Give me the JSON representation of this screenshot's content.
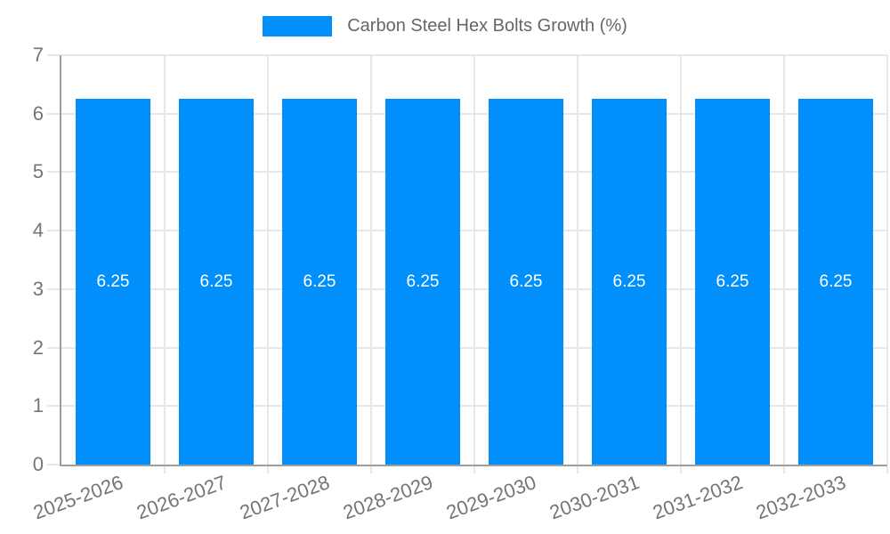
{
  "chart_data": {
    "type": "bar",
    "title": "Carbon Steel Hex Bolts Growth (%)",
    "categories": [
      "2025-2026",
      "2026-2027",
      "2027-2028",
      "2028-2029",
      "2029-2030",
      "2030-2031",
      "2031-2032",
      "2032-2033"
    ],
    "values": [
      6.25,
      6.25,
      6.25,
      6.25,
      6.25,
      6.25,
      6.25,
      6.25
    ],
    "value_labels": [
      "6.25",
      "6.25",
      "6.25",
      "6.25",
      "6.25",
      "6.25",
      "6.25",
      "6.25"
    ],
    "yticks": [
      0,
      1,
      2,
      3,
      4,
      5,
      6,
      7
    ],
    "ylim": [
      0,
      7
    ],
    "xlabel": "",
    "ylabel": "",
    "grid": true,
    "legend_position": "top",
    "colors": {
      "bar": "#008FFB",
      "grid": "#e7e7e7",
      "axis": "#9e9e9e",
      "tick_text": "#757575",
      "legend_text": "#666666",
      "value_text": "#ffffff",
      "background": "#ffffff"
    }
  }
}
